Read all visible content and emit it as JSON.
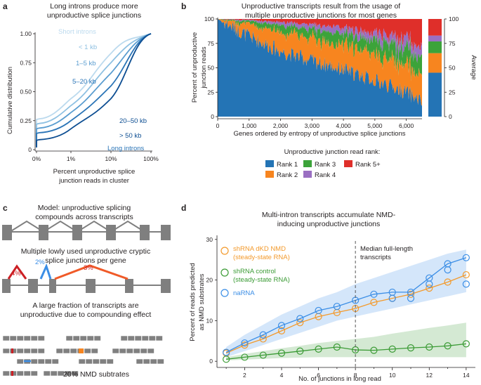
{
  "panels": {
    "a": "a",
    "b": "b",
    "c": "c",
    "d": "d"
  },
  "colors": {
    "rank1": "#2474b5",
    "rank2": "#f7851f",
    "rank3": "#3ca33a",
    "rank4": "#9a6fc2",
    "rank5": "#df2f2a",
    "cdf": [
      "#bcdaee",
      "#8fc1e2",
      "#5a9dd0",
      "#2b75b7",
      "#0d4e92"
    ],
    "d_orange": "#f39a2c",
    "d_blue": "#3b8ee6",
    "d_green": "#3b9b35",
    "grey": "#7f7f7f",
    "red": "#cc1f24"
  },
  "panel_a": {
    "title_line1": "Long introns produce more",
    "title_line2": "unproductive splice junctions",
    "labels": [
      "Short introns",
      "< 1 kb",
      "1–5 kb",
      "5–20 kb",
      "20–50 kb",
      "> 50 kb",
      "Long introns"
    ]
  },
  "panel_b": {
    "title_line1": "Unproductive transcripts result from the usage of",
    "title_line2": "multiple unproductive junctions for most genes",
    "average_label": "Average",
    "legend_title": "Unproductive junction read rank:",
    "legend": [
      "Rank 1",
      "Rank 2",
      "Rank 3",
      "Rank 4",
      "Rank 5+"
    ]
  },
  "panel_c": {
    "title_line1": "Model: unproductive splicing",
    "title_line2": "compounds across transcripts",
    "mid_line1": "Multiple lowly used unproductive cryptic",
    "mid_line2": "splice junctions per gene",
    "pct_left": "4%",
    "pct_mid": "2%",
    "pct_right": "3%",
    "bottom_line1": "A large fraction of transcripts are",
    "bottom_line2": "unproductive due to compounding effect",
    "nmd_label": "20% NMD subtrates"
  },
  "panel_d": {
    "title_line1": "Multi-intron transcripts accumulate NMD-",
    "title_line2": "inducing unproductive junctions",
    "median_line1": "Median full-length",
    "median_line2": "transcripts",
    "legend": [
      {
        "line1": "shRNA dKD NMD",
        "line2": "(steady-state RNA)"
      },
      {
        "line1": "shRNA control",
        "line2": "(steady-state RNA)"
      },
      {
        "line1": "naRNA",
        "line2": ""
      }
    ]
  },
  "chart_data": [
    {
      "type": "line",
      "title": "Long introns produce more unproductive splice junctions",
      "xlabel": "Percent unproductive splice junction reads in cluster",
      "ylabel": "Cumulative distribution",
      "xscale": "log",
      "xticks": [
        "0%",
        "1%",
        "10%",
        "100%"
      ],
      "yticks": [
        "0",
        "0.25",
        "0.50",
        "0.75",
        "1.00"
      ],
      "ylim": [
        0,
        1
      ],
      "series": [
        {
          "name": "< 1 kb",
          "x": [
            0,
            1,
            10,
            100
          ],
          "y": [
            0.26,
            0.44,
            0.83,
            1.0
          ]
        },
        {
          "name": "1–5 kb",
          "x": [
            0,
            1,
            10,
            100
          ],
          "y": [
            0.22,
            0.38,
            0.75,
            1.0
          ]
        },
        {
          "name": "5–20 kb",
          "x": [
            0,
            1,
            10,
            100
          ],
          "y": [
            0.18,
            0.32,
            0.66,
            1.0
          ]
        },
        {
          "name": "20–50 kb",
          "x": [
            0,
            1,
            10,
            100
          ],
          "y": [
            0.14,
            0.25,
            0.55,
            1.0
          ]
        },
        {
          "name": "> 50 kb",
          "x": [
            0,
            1,
            10,
            100
          ],
          "y": [
            0.08,
            0.18,
            0.44,
            1.0
          ]
        }
      ]
    },
    {
      "type": "area",
      "title": "Unproductive transcripts result from the usage of multiple unproductive junctions for most genes",
      "xlabel": "Genes ordered by entropy of unproductive splice junctions",
      "ylabel": "Percent of unproductive junction reads",
      "xlim": [
        0,
        6500
      ],
      "ylim": [
        0,
        100
      ],
      "xticks": [
        "0",
        "1,000",
        "2,000",
        "3,000",
        "4,000",
        "5,000",
        "6,000"
      ],
      "yticks": [
        "0",
        "25",
        "50",
        "75",
        "100"
      ],
      "x": [
        0,
        1000,
        2000,
        3000,
        4000,
        5000,
        6000,
        6500
      ],
      "series": [
        {
          "name": "Rank 1",
          "values": [
            100,
            82,
            67,
            57,
            48,
            37,
            25,
            15
          ]
        },
        {
          "name": "Rank 2",
          "values": [
            0,
            13,
            20,
            23,
            25,
            26,
            27,
            27
          ]
        },
        {
          "name": "Rank 3",
          "values": [
            0,
            3,
            7,
            10,
            12,
            15,
            17,
            18
          ]
        },
        {
          "name": "Rank 4",
          "values": [
            0,
            1,
            3,
            5,
            6,
            8,
            10,
            11
          ]
        },
        {
          "name": "Rank 5+",
          "values": [
            0,
            1,
            3,
            5,
            9,
            14,
            21,
            29
          ]
        }
      ],
      "average": [
        {
          "name": "Rank 1",
          "value": 45
        },
        {
          "name": "Rank 2",
          "value": 20
        },
        {
          "name": "Rank 3",
          "value": 12
        },
        {
          "name": "Rank 4",
          "value": 6
        },
        {
          "name": "Rank 5+",
          "value": 17
        }
      ],
      "average_ticks": [
        "0",
        "25",
        "50",
        "75",
        "100"
      ]
    },
    {
      "type": "line",
      "title": "Multi-intron transcripts accumulate NMD-inducing unproductive junctions",
      "xlabel": "No. of junctions in long read",
      "ylabel": "Percent of reads predicted as NMD substrates",
      "xlim": [
        0.5,
        14.5
      ],
      "ylim": [
        -1,
        31
      ],
      "xticks": [
        "2",
        "4",
        "6",
        "8",
        "10",
        "12",
        "14"
      ],
      "yticks": [
        "0",
        "10",
        "20",
        "30"
      ],
      "median_x": 8,
      "series": [
        {
          "name": "shRNA dKD NMD (steady-state RNA)",
          "x": [
            1,
            2,
            3,
            4,
            5,
            6,
            7,
            8,
            9,
            10,
            11,
            12,
            13,
            14
          ],
          "values": [
            2.0,
            4.0,
            5.5,
            7.5,
            9.5,
            11.0,
            12.0,
            13.0,
            14.5,
            15.5,
            16.5,
            18.0,
            19.5,
            21.3
          ]
        },
        {
          "name": "shRNA control (steady-state RNA)",
          "x": [
            1,
            2,
            3,
            4,
            5,
            6,
            7,
            8,
            9,
            10,
            11,
            12,
            13,
            14
          ],
          "values": [
            0.5,
            1.0,
            1.5,
            2.0,
            2.5,
            3.0,
            3.5,
            2.8,
            2.7,
            3.0,
            3.3,
            3.5,
            3.8,
            4.3
          ],
          "band_low": [
            0.2,
            0.4,
            0.6,
            0.8,
            0.9,
            1.0,
            1.0,
            1.0,
            1.0,
            1.0,
            1.0,
            1.0,
            1.0,
            1.0
          ],
          "band_high": [
            1.0,
            1.8,
            2.5,
            3.2,
            3.8,
            4.5,
            5.0,
            5.5,
            6.0,
            6.8,
            7.5,
            8.2,
            8.8,
            9.5
          ]
        },
        {
          "name": "naRNA",
          "x": [
            1,
            2,
            3,
            4,
            5,
            6,
            7,
            8,
            9,
            10,
            11,
            12,
            13,
            14
          ],
          "values": [
            2.2,
            4.5,
            6.5,
            8.8,
            10.5,
            12.5,
            13.5,
            15.0,
            16.5,
            17.0,
            17.0,
            20.5,
            24.0,
            25.5
          ],
          "band_low": [
            1.0,
            2.5,
            4.0,
            5.5,
            7.0,
            8.5,
            10.0,
            11.0,
            12.0,
            13.0,
            14.0,
            15.0,
            16.0,
            17.0
          ],
          "band_high": [
            3.5,
            6.5,
            9.0,
            11.5,
            13.5,
            15.5,
            17.0,
            19.0,
            20.5,
            22.0,
            23.5,
            25.0,
            26.5,
            27.5
          ]
        }
      ]
    }
  ]
}
